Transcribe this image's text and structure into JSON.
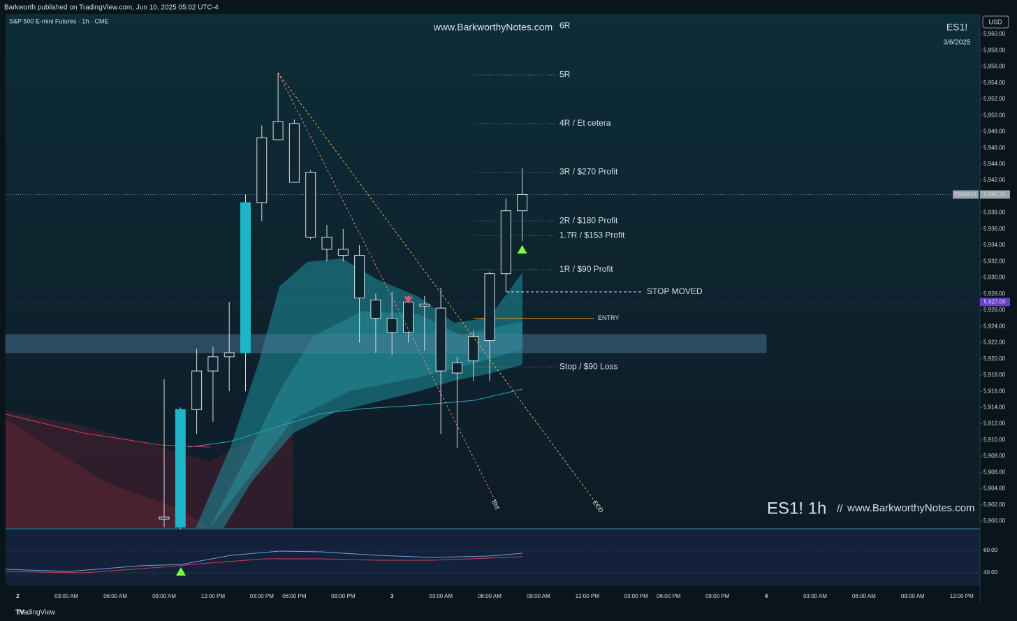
{
  "header": {
    "publisher": "Barkworth published on TradingView.com, Jun 10, 2025 05:02 UTC-4",
    "brand": "TradingView"
  },
  "chart_data": {
    "type": "candlestick",
    "symbol_title": "S&P 500 E-mini Futures · 1h · CME",
    "watermark": "www.BarkworthyNotes.com",
    "ticker": "ES1!",
    "date": "3/6/2025",
    "signature": "ES1! 1h",
    "separator": "//",
    "signature_url": "www.BarkworthyNotes.com",
    "currency": "USD",
    "series": [
      {
        "open": [
          5900.5,
          5899.25,
          5913.75,
          5918.5,
          5920.25,
          5920.75,
          5939.25,
          5947,
          5949,
          5943,
          5935,
          5933.5,
          5932.75,
          5927.25,
          5925,
          5923.25,
          5926.75,
          5926.25,
          5918.25,
          5919.75,
          5922.25,
          5930.5,
          5938.25
        ],
        "high": [
          5917.5,
          5914,
          5921.25,
          5921.5,
          5927,
          5940.25,
          5948.75,
          5955.25,
          5949.5,
          5943.25,
          5936.5,
          5936,
          5934,
          5928,
          5928.25,
          5927.75,
          5927.75,
          5928.75,
          5920.25,
          5923.5,
          5930.75,
          5939.75,
          5943.5
        ],
        "low": [
          5899.25,
          5899,
          5910.75,
          5912.25,
          5916,
          5916,
          5937,
          5947,
          5941.75,
          5934.75,
          5932,
          5932,
          5922,
          5920.75,
          5920.5,
          5922,
          5921,
          5910.75,
          5909,
          5917.25,
          5917.25,
          5928.25,
          5934.5
        ],
        "close": [
          5900.25,
          5913.75,
          5918.5,
          5920.25,
          5920.75,
          5939.25,
          5947.25,
          5949.25,
          5941.75,
          5935,
          5933.5,
          5932.75,
          5927.5,
          5925,
          5923.25,
          5927,
          5926.5,
          5918.5,
          5919.5,
          5922.75,
          5930.5,
          5938.25,
          5940.25
        ],
        "colors": [
          "#0e2530",
          "#1fb5c8",
          "#0e2530",
          "#0e2530",
          "#0e2530",
          "#1fb5c8",
          "#0e2530",
          "#0e2530",
          "#0e2530",
          "#0e2530",
          "#0e2530",
          "#0e2530",
          "#0e2530",
          "#0e2530",
          "#0e2530",
          "#0e2530",
          "#0e2530",
          "#0e2530",
          "#0e2530",
          "#0e2530",
          "#0e2530",
          "#0e2530",
          "#0e2530"
        ]
      }
    ],
    "ylim": [
      5899.14,
      5962.5
    ],
    "yticks": [
      {
        "value": 5900,
        "label": "5,900.00"
      },
      {
        "value": 5902,
        "label": "5,902.00"
      },
      {
        "value": 5904,
        "label": "5,904.00"
      },
      {
        "value": 5906,
        "label": "5,906.00"
      },
      {
        "value": 5908,
        "label": "5,908.00"
      },
      {
        "value": 5910,
        "label": "5,910.00"
      },
      {
        "value": 5912,
        "label": "5,912.00"
      },
      {
        "value": 5914,
        "label": "5,914.00"
      },
      {
        "value": 5916,
        "label": "5,916.00"
      },
      {
        "value": 5918,
        "label": "5,918.00"
      },
      {
        "value": 5920,
        "label": "5,920.00"
      },
      {
        "value": 5922,
        "label": "5,922.00"
      },
      {
        "value": 5924,
        "label": "5,924.00"
      },
      {
        "value": 5926,
        "label": "5,926.00"
      },
      {
        "value": 5928,
        "label": "5,928.00"
      },
      {
        "value": 5930,
        "label": "5,930.00"
      },
      {
        "value": 5932,
        "label": "5,932.00"
      },
      {
        "value": 5934,
        "label": "5,934.00"
      },
      {
        "value": 5936,
        "label": "5,936.00"
      },
      {
        "value": 5938,
        "label": "5,938.00"
      },
      {
        "value": 5940,
        "label": "5,940.00"
      },
      {
        "value": 5942,
        "label": "5,942.00"
      },
      {
        "value": 5944,
        "label": "5,944.00"
      },
      {
        "value": 5946,
        "label": "5,946.00"
      },
      {
        "value": 5948,
        "label": "5,948.00"
      },
      {
        "value": 5950,
        "label": "5,950.00"
      },
      {
        "value": 5952,
        "label": "5,952.00"
      },
      {
        "value": 5954,
        "label": "5,954.00"
      },
      {
        "value": 5956,
        "label": "5,956.00"
      },
      {
        "value": 5958,
        "label": "5,958.00"
      },
      {
        "value": 5960,
        "label": "5,960.00"
      }
    ],
    "xticks": [
      "2",
      "03:00 AM",
      "06:00 AM",
      "09:00 AM",
      "12:00 PM",
      "03:00 PM",
      "06:00 PM",
      "09:00 PM",
      "3",
      "03:00 AM",
      "06:00 AM",
      "09:00 AM",
      "12:00 PM",
      "03:00 PM",
      "06:00 PM",
      "09:00 PM",
      "4",
      "03:00 AM",
      "06:00 AM",
      "09:00 AM",
      "12:00 PM"
    ],
    "price_labels": [
      {
        "name": "ESM2025",
        "value": 5940.25,
        "label": "5,940.25",
        "color": "#9aa3ab"
      },
      {
        "value": 5927,
        "label": "5,927.00",
        "color": "#6a3fc8"
      }
    ],
    "levels": [
      {
        "label": "6R",
        "value": 5961,
        "color": "#b8cde8"
      },
      {
        "label": "5R",
        "value": 5955,
        "color": "#b8cde8"
      },
      {
        "label": "4R / Et cetera",
        "value": 5949,
        "color": "#6e9fe6"
      },
      {
        "label": "3R / $270 Profit",
        "value": 5943,
        "color": "#6e9fe6"
      },
      {
        "label": "2R / $180 Profit",
        "value": 5937,
        "color": "#5cc7a6"
      },
      {
        "label": "1.7R / $153 Profit",
        "value": 5935.2,
        "color": "#5cc7a6"
      },
      {
        "label": "1R / $90 Profit",
        "value": 5931,
        "color": "#5cc7a6"
      },
      {
        "label": "Stop / $90 Loss",
        "value": 5919,
        "color": "#f07a7a"
      }
    ],
    "entry": {
      "label": "ENTRY",
      "value": 5925,
      "color": "#e89a2c"
    },
    "stop_moved": {
      "label": "STOP MOVED",
      "value": 5928.25,
      "color": "#cfe6ea"
    },
    "zone": [
      5920.75,
      5923
    ],
    "signals": [
      {
        "index": 22,
        "value": 5933.5,
        "direction": "up",
        "color": "#7cff3a"
      },
      {
        "index": 15,
        "value": 5927.25,
        "direction": "down",
        "color": "#f0506a"
      }
    ],
    "trendlines": [
      {
        "label": "Bot",
        "start_x": 7,
        "start": 5955.25,
        "end_x": 20.6,
        "end": 5901.5,
        "color": "#f07a8a"
      },
      {
        "label": "ECD",
        "start_x": 7,
        "start": 5955.25,
        "end_x": 26.9,
        "end": 5901.25,
        "color": "#f0b040"
      }
    ],
    "lower_pane": {
      "ylim": [
        28.75,
        78.75
      ],
      "yticks": [
        {
          "value": 60,
          "label": "60.00"
        },
        {
          "value": 40,
          "label": "40.00"
        }
      ]
    }
  }
}
